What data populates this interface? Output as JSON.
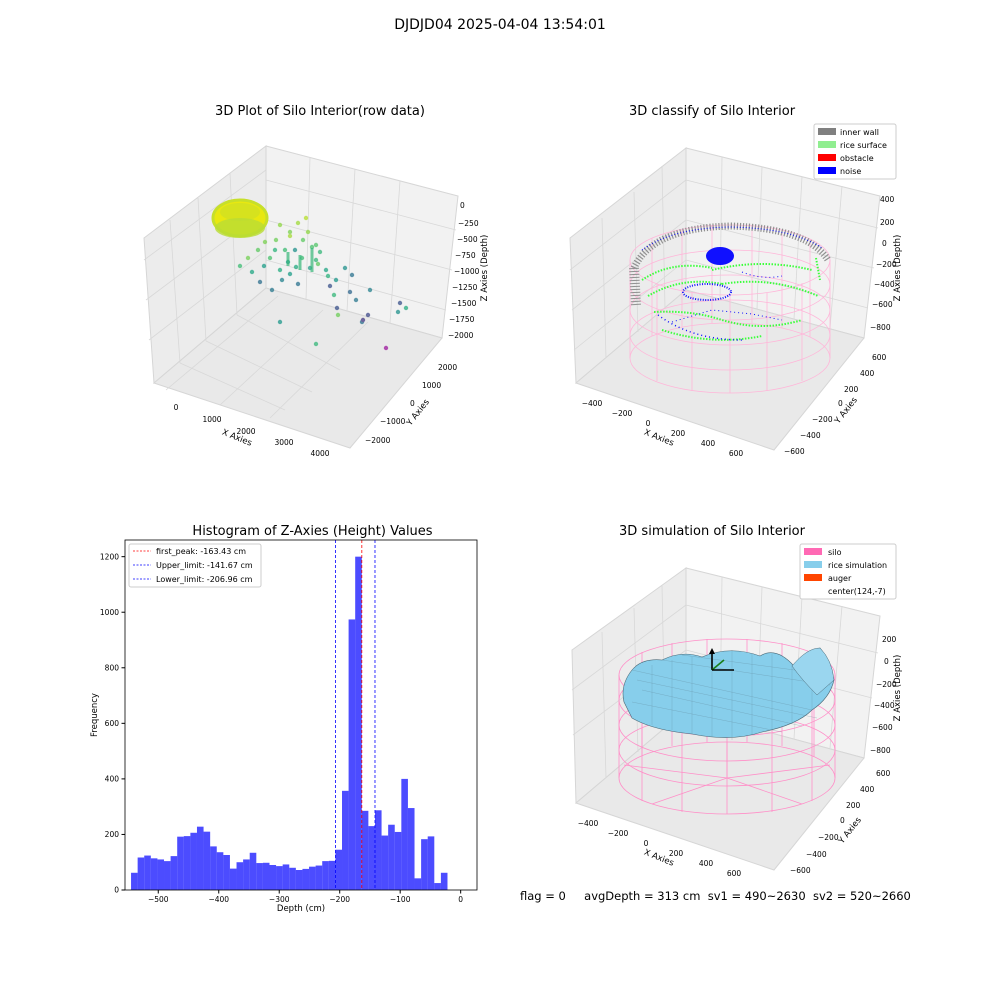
{
  "suptitle": "DJDJD04 2025-04-04 13:54:01",
  "status": {
    "flag": "flag = 0",
    "avgDepth": "avgDepth = 313 cm",
    "sv1": "sv1 = 490~2630",
    "sv2": "sv2 = 520~2660"
  },
  "chart_data": [
    {
      "type": "scatter",
      "subtype": "3d",
      "title": "3D Plot of Silo Interior(row data)",
      "xlabel": "X Axies",
      "ylabel": "Y Axies",
      "zlabel": "Z Axies (Depth)",
      "x_ticks": [
        "0",
        "1000",
        "2000",
        "3000",
        "4000"
      ],
      "y_ticks": [
        "2000",
        "1000",
        "0",
        "−1000",
        "−2000"
      ],
      "z_ticks": [
        "0",
        "−250",
        "−500",
        "−750",
        "−1000",
        "−1250",
        "−1500",
        "−1750",
        "−2000"
      ],
      "colormap": "viridis",
      "grid": true
    },
    {
      "type": "scatter",
      "subtype": "3d",
      "title": "3D classify of Silo Interior",
      "xlabel": "X Axies",
      "ylabel": "Y Axies",
      "zlabel": "Z Axies (Depth)",
      "x_ticks": [
        "−400",
        "−200",
        "0",
        "200",
        "400",
        "600"
      ],
      "y_ticks": [
        "600",
        "400",
        "200",
        "0",
        "−200",
        "−400",
        "−600"
      ],
      "z_ticks": [
        "400",
        "200",
        "0",
        "−200",
        "−400",
        "−600",
        "−800"
      ],
      "legend": [
        {
          "label": "inner wall",
          "color": "#808080"
        },
        {
          "label": "rice surface",
          "color": "#90ee90"
        },
        {
          "label": "obstacle",
          "color": "#ff0000"
        },
        {
          "label": "noise",
          "color": "#0000ff"
        }
      ],
      "legend_position": "top-right",
      "grid": true
    },
    {
      "type": "bar",
      "subtype": "histogram",
      "title": "Histogram of Z-Axies (Height) Values",
      "xlabel": "Depth (cm)",
      "ylabel": "Frequency",
      "xlim": [
        -555,
        27
      ],
      "ylim": [
        0,
        1260
      ],
      "x_ticks": [
        -500,
        -400,
        -300,
        -200,
        -100,
        0
      ],
      "x_tick_labels": [
        "−500",
        "−400",
        "−300",
        "−200",
        "−100",
        "0"
      ],
      "y_ticks": [
        0,
        200,
        400,
        600,
        800,
        1000,
        1200
      ],
      "y_tick_labels": [
        "0",
        "200",
        "400",
        "600",
        "800",
        "1000",
        "1200"
      ],
      "bin_start": -545,
      "bin_width": 10.9,
      "values": [
        62,
        117,
        124,
        114,
        110,
        104,
        122,
        192,
        194,
        206,
        228,
        210,
        157,
        136,
        126,
        77,
        100,
        110,
        134,
        97,
        98,
        90,
        86,
        92,
        80,
        72,
        76,
        84,
        88,
        104,
        105,
        145,
        357,
        974,
        1200,
        285,
        230,
        287,
        196,
        235,
        209,
        400,
        295,
        42,
        183,
        193,
        25,
        62
      ],
      "bar_color": "#0000ff",
      "bar_alpha": 0.7,
      "vlines": [
        {
          "label": "first_peak: -163.43 cm",
          "x": -163.43,
          "color": "#ff0000",
          "style": "dashed"
        },
        {
          "label": "Upper_limit: -141.67 cm",
          "x": -141.67,
          "color": "#0000ff",
          "style": "dashed"
        },
        {
          "label": "Lower_limit: -206.96 cm",
          "x": -206.96,
          "color": "#0000ff",
          "style": "dashed"
        }
      ],
      "legend_position": "top-left",
      "grid": false
    },
    {
      "type": "surface",
      "subtype": "3d",
      "title": "3D simulation of Silo Interior",
      "xlabel": "X Axies",
      "ylabel": "Y Axies",
      "zlabel": "Z Axies (Depth)",
      "x_ticks": [
        "−400",
        "−200",
        "0",
        "200",
        "400",
        "600"
      ],
      "y_ticks": [
        "600",
        "400",
        "200",
        "0",
        "−200",
        "−400",
        "−600"
      ],
      "z_ticks": [
        "200",
        "0",
        "−200",
        "−400",
        "−600",
        "−800"
      ],
      "legend": [
        {
          "label": "silo",
          "color": "#ff69b4"
        },
        {
          "label": "rice simulation",
          "color": "#87ceeb"
        },
        {
          "label": "auger",
          "color": "#ff4500"
        },
        {
          "label": "center(124,-7)",
          "color": ""
        }
      ],
      "legend_position": "top-right",
      "grid": true
    }
  ]
}
